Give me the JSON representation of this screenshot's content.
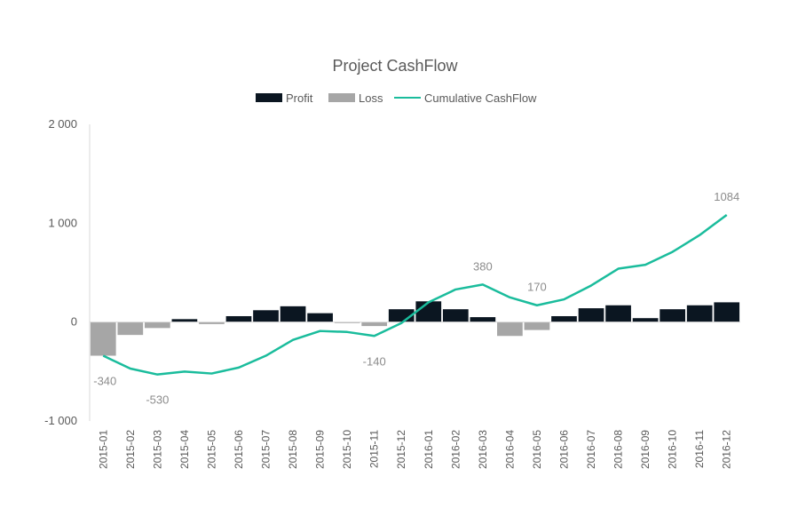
{
  "chart_data": {
    "type": "bar",
    "title": "Project CashFlow",
    "legend": {
      "position": "top",
      "items": [
        {
          "label": "Profit",
          "color": "#0b1621"
        },
        {
          "label": "Loss",
          "color": "#a6a6a6"
        },
        {
          "label": "Cumulative CashFlow",
          "color": "#1abc9c"
        }
      ]
    },
    "ylim": [
      -1000,
      2000
    ],
    "yticks": [
      2000,
      1000,
      0,
      -1000
    ],
    "ytick_labels": [
      "2 000",
      "1 000",
      "0",
      "-1 000"
    ],
    "categories": [
      "2015-01",
      "2015-02",
      "2015-03",
      "2015-04",
      "2015-05",
      "2015-06",
      "2015-07",
      "2015-08",
      "2015-09",
      "2015-10",
      "2015-11",
      "2015-12",
      "2016-01",
      "2016-02",
      "2016-03",
      "2016-04",
      "2016-05",
      "2016-06",
      "2016-07",
      "2016-08",
      "2016-09",
      "2016-10",
      "2016-11",
      "2016-12"
    ],
    "series": [
      {
        "name": "Profit",
        "type": "bar",
        "values": [
          0,
          0,
          0,
          30,
          0,
          60,
          120,
          160,
          90,
          0,
          0,
          130,
          210,
          130,
          50,
          0,
          0,
          60,
          140,
          170,
          40,
          130,
          170,
          200
        ]
      },
      {
        "name": "Loss",
        "type": "bar",
        "values": [
          -340,
          -130,
          -60,
          0,
          -20,
          0,
          0,
          0,
          0,
          -10,
          -40,
          0,
          0,
          0,
          0,
          -140,
          -80,
          0,
          0,
          0,
          0,
          0,
          0,
          0
        ]
      },
      {
        "name": "Cumulative CashFlow",
        "type": "line",
        "values": [
          -340,
          -470,
          -530,
          -500,
          -520,
          -460,
          -340,
          -180,
          -90,
          -100,
          -140,
          -10,
          200,
          330,
          380,
          250,
          170,
          230,
          370,
          540,
          580,
          710,
          880,
          1084
        ]
      }
    ],
    "annotations": [
      {
        "index": 0,
        "text": "-340"
      },
      {
        "index": 2,
        "text": "-530"
      },
      {
        "index": 10,
        "text": "-140"
      },
      {
        "index": 14,
        "text": "380"
      },
      {
        "index": 16,
        "text": "170"
      },
      {
        "index": 23,
        "text": "1084"
      }
    ],
    "grid": false
  }
}
